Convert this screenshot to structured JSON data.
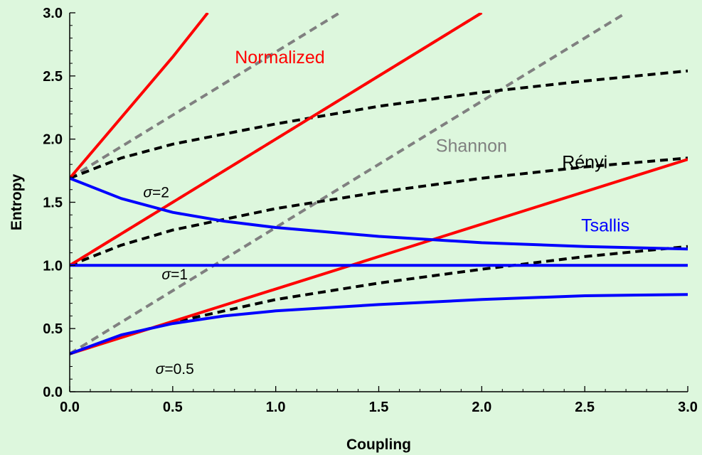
{
  "chart_data": {
    "type": "line",
    "xlabel": "Coupling",
    "ylabel": "Entropy",
    "xlim": [
      0,
      3
    ],
    "ylim": [
      0,
      3
    ],
    "x_ticks": [
      "0.0",
      "0.5",
      "1.0",
      "1.5",
      "2.0",
      "2.5",
      "3.0"
    ],
    "y_ticks": [
      "0.0",
      "0.5",
      "1.0",
      "1.5",
      "2.0",
      "2.5",
      "3.0"
    ],
    "grid": false,
    "background_color": "#ddf7dd",
    "series": [
      {
        "group": "Normalized",
        "sigma": "2",
        "color": "#ff0000",
        "dash": "solid",
        "x": [
          0,
          0.5,
          0.67
        ],
        "y": [
          1.69,
          2.65,
          3.0
        ]
      },
      {
        "group": "Normalized",
        "sigma": "1",
        "color": "#ff0000",
        "dash": "solid",
        "x": [
          0,
          1.0,
          2.0
        ],
        "y": [
          1.0,
          2.0,
          3.0
        ]
      },
      {
        "group": "Normalized",
        "sigma": "0.5",
        "color": "#ff0000",
        "dash": "solid",
        "x": [
          0,
          1.5,
          3.0
        ],
        "y": [
          0.3,
          1.07,
          1.84
        ]
      },
      {
        "group": "Shannon",
        "sigma": "2",
        "color": "#808080",
        "dash": "dashed",
        "x": [
          0,
          1.0,
          1.31
        ],
        "y": [
          1.69,
          2.69,
          3.0
        ]
      },
      {
        "group": "Shannon",
        "sigma": "1",
        "color": "#808080",
        "dash": "dashed",
        "x": [
          0,
          1.0,
          2.0
        ],
        "y": [
          1.0,
          2.0,
          3.0
        ]
      },
      {
        "group": "Shannon",
        "sigma": "0.5",
        "color": "#808080",
        "dash": "dashed",
        "x": [
          0,
          1.5,
          2.7
        ],
        "y": [
          0.3,
          1.8,
          3.0
        ]
      },
      {
        "group": "Rényi",
        "sigma": "2",
        "color": "#000000",
        "dash": "dashed",
        "x": [
          0,
          0.25,
          0.5,
          1.0,
          1.5,
          2.0,
          2.5,
          3.0
        ],
        "y": [
          1.69,
          1.85,
          1.96,
          2.12,
          2.26,
          2.37,
          2.46,
          2.54
        ]
      },
      {
        "group": "Rényi",
        "sigma": "1",
        "color": "#000000",
        "dash": "dashed",
        "x": [
          0,
          0.25,
          0.5,
          1.0,
          1.5,
          2.0,
          2.5,
          3.0
        ],
        "y": [
          1.0,
          1.16,
          1.28,
          1.45,
          1.58,
          1.69,
          1.78,
          1.85
        ]
      },
      {
        "group": "Rényi",
        "sigma": "0.5",
        "color": "#000000",
        "dash": "dashed",
        "x": [
          0,
          0.25,
          0.5,
          1.0,
          1.5,
          2.0,
          2.5,
          3.0
        ],
        "y": [
          0.3,
          0.44,
          0.55,
          0.73,
          0.86,
          0.97,
          1.07,
          1.15
        ]
      },
      {
        "group": "Tsallis",
        "sigma": "2",
        "color": "#0000ff",
        "dash": "solid",
        "x": [
          0,
          0.25,
          0.5,
          0.75,
          1.0,
          1.5,
          2.0,
          2.5,
          3.0
        ],
        "y": [
          1.69,
          1.53,
          1.42,
          1.35,
          1.3,
          1.23,
          1.18,
          1.15,
          1.13
        ]
      },
      {
        "group": "Tsallis",
        "sigma": "1",
        "color": "#0000ff",
        "dash": "solid",
        "x": [
          0,
          3.0
        ],
        "y": [
          1.0,
          1.0
        ]
      },
      {
        "group": "Tsallis",
        "sigma": "0.5",
        "color": "#0000ff",
        "dash": "solid",
        "x": [
          0,
          0.25,
          0.5,
          0.75,
          1.0,
          1.5,
          2.0,
          2.5,
          3.0
        ],
        "y": [
          0.3,
          0.45,
          0.54,
          0.6,
          0.64,
          0.69,
          0.73,
          0.76,
          0.77
        ]
      }
    ],
    "annotations": [
      {
        "text": "Normalized",
        "x": 1.02,
        "y": 2.6,
        "color": "#ff0000"
      },
      {
        "text": "Shannon",
        "x": 1.95,
        "y": 1.9,
        "color": "#808080"
      },
      {
        "text": "Rényi",
        "x": 2.5,
        "y": 1.77,
        "color": "#000000"
      },
      {
        "text": "Tsallis",
        "x": 2.6,
        "y": 1.27,
        "color": "#0000ff"
      }
    ],
    "sigma_labels": [
      {
        "symbol": "σ",
        "value": "=2",
        "x": 0.42,
        "y": 1.54
      },
      {
        "symbol": "σ",
        "value": "=1",
        "x": 0.51,
        "y": 0.89
      },
      {
        "symbol": "σ",
        "value": "=0.5",
        "x": 0.51,
        "y": 0.14
      }
    ]
  }
}
